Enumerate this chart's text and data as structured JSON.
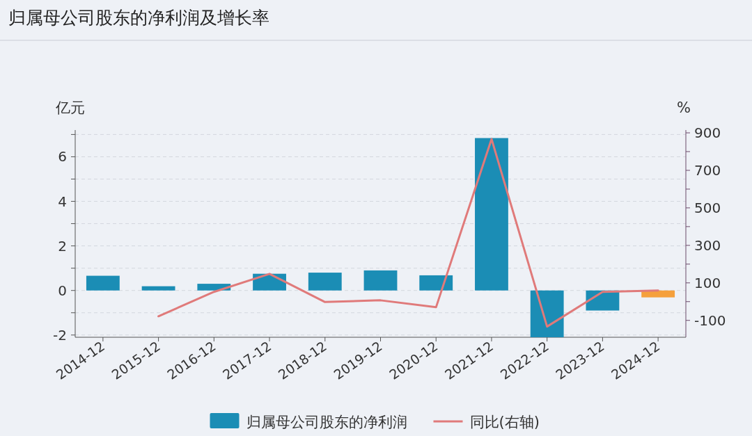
{
  "chart_data": {
    "type": "bar",
    "title": "归属母公司股东的净利润及增长率",
    "ylabel": "亿元",
    "y2label": "%",
    "categories": [
      "2014-12",
      "2015-12",
      "2016-12",
      "2017-12",
      "2018-12",
      "2019-12",
      "2020-12",
      "2021-12",
      "2022-12",
      "2023-12",
      "2024-12"
    ],
    "series": [
      {
        "name": "归属母公司股东的净利润",
        "color": "#1b8db5",
        "colors": [
          "#1b8db5",
          "#1b8db5",
          "#1b8db5",
          "#1b8db5",
          "#1b8db5",
          "#1b8db5",
          "#1b8db5",
          "#1b8db5",
          "#1b8db5",
          "#1b8db5",
          "#f5a03c"
        ],
        "values": [
          0.66,
          0.19,
          0.3,
          0.75,
          0.8,
          0.9,
          0.68,
          6.84,
          -2.1,
          -0.9,
          -0.31
        ]
      },
      {
        "name": "同比(右轴)",
        "type": "line",
        "axis": "y2",
        "color": "#e07a7a",
        "values": [
          null,
          -78,
          52,
          148,
          -2,
          7,
          -30,
          867,
          -133,
          52,
          59
        ]
      }
    ],
    "ylim": [
      -2.1,
      7.2
    ],
    "yticks": [
      -2,
      {
        "value": -1,
        "label": null
      },
      0,
      {
        "value": 1,
        "label": null
      },
      2,
      {
        "value": 3,
        "label": null
      },
      4,
      {
        "value": 5,
        "label": null
      },
      6,
      {
        "value": 7,
        "label": null
      }
    ],
    "y2lim": [
      -190,
      915
    ],
    "y2ticks": [
      -100,
      {
        "value": 0,
        "label": null
      },
      100,
      {
        "value": 200,
        "label": null
      },
      300,
      {
        "value": 400,
        "label": null
      },
      500,
      {
        "value": 600,
        "label": null
      },
      700,
      {
        "value": 800,
        "label": null
      },
      900
    ],
    "grid": "y",
    "legend": "bottom",
    "marker": "none",
    "line_style": "solid"
  }
}
